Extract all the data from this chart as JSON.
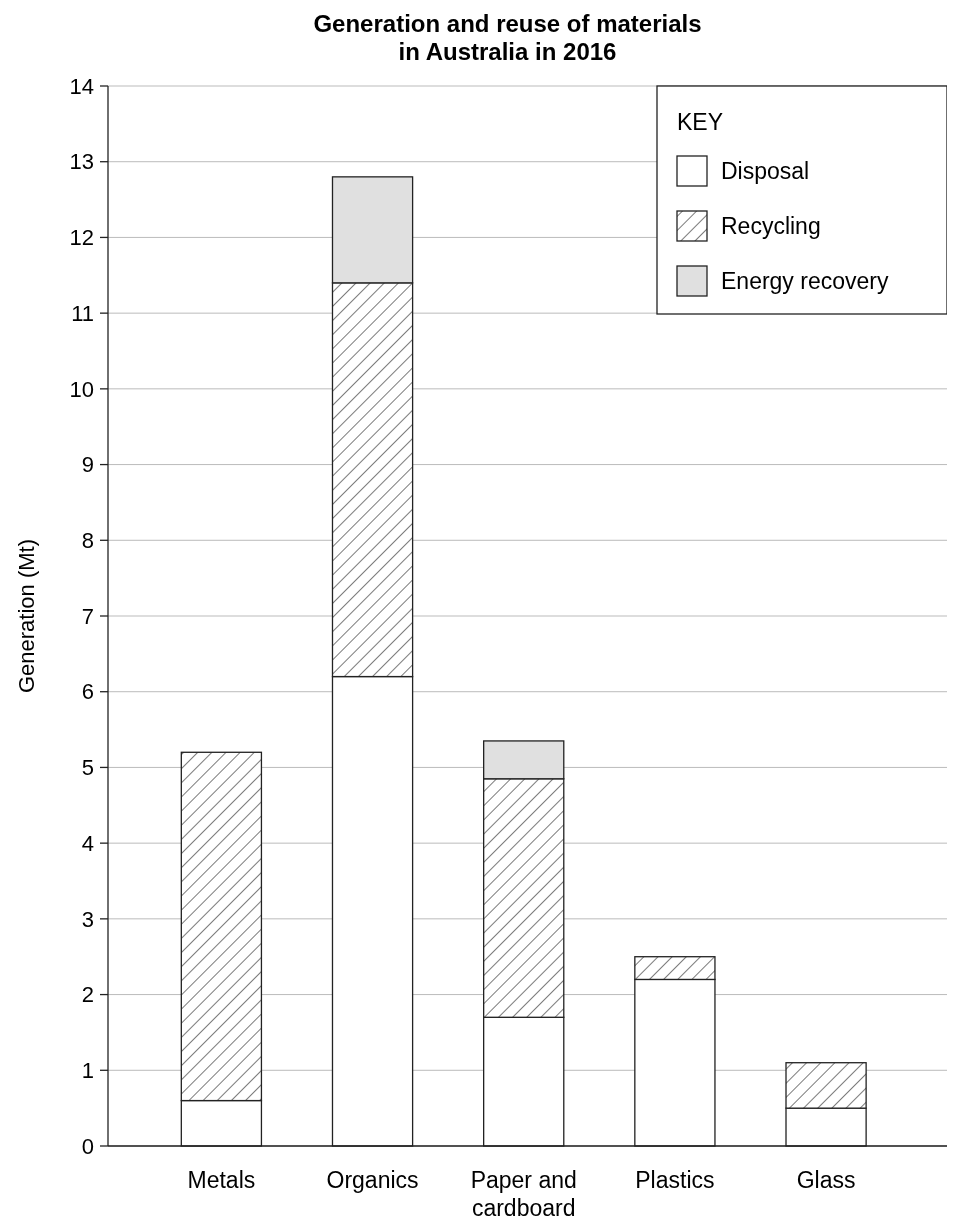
{
  "chart_data": {
    "type": "bar",
    "title": "Generation and reuse of materials\nin Australia in 2016",
    "ylabel": "Generation (Mt)",
    "categories": [
      "Metals",
      "Organics",
      "Paper and cardboard",
      "Plastics",
      "Glass"
    ],
    "stacked": true,
    "series": [
      {
        "name": "Disposal",
        "color": "#ffffff",
        "values": [
          0.6,
          6.2,
          1.7,
          2.2,
          0.5
        ]
      },
      {
        "name": "Recycling",
        "color": "#222222",
        "values": [
          4.6,
          5.2,
          3.15,
          0.3,
          0.6
        ]
      },
      {
        "name": "Energy recovery",
        "color": "#e0e0e0",
        "values": [
          null,
          1.4,
          0.5,
          null,
          null
        ]
      }
    ],
    "ylim": [
      0,
      14
    ],
    "yticks": [
      0,
      1,
      2,
      3,
      4,
      5,
      6,
      7,
      8,
      9,
      10,
      11,
      12,
      13,
      14
    ],
    "grid": "y",
    "legend": "top right",
    "legend_title": "KEY"
  }
}
